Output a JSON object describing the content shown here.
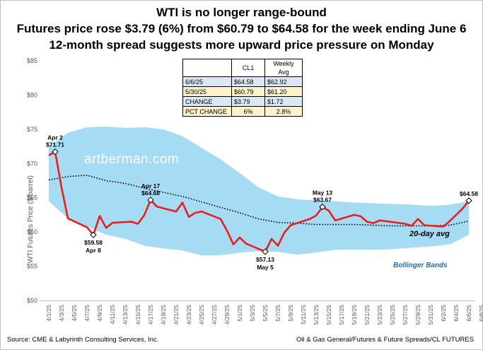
{
  "titles": {
    "line1": "WTI is no longer range-bound",
    "line2": "Futures price rose $3.79 (6%) from $60.79 to $64.58 for the week ending June 6",
    "line3": "12-month spread suggests more upward price pressure on Monday"
  },
  "footer": {
    "source": "Source: CME & Labyrinth Consulting Services, Inc.",
    "path": "Oil & Gas General/Futures & Future Spreads/CL FUTURES"
  },
  "table": {
    "headers": [
      "",
      "CL1",
      "Weekly Avg"
    ],
    "rows": [
      {
        "label": "6/6/25",
        "cl1": "$64.58",
        "avg": "$62.92"
      },
      {
        "label": "5/30/25",
        "cl1": "$60.79",
        "avg": "$61.20"
      },
      {
        "label": "CHANGE",
        "cl1": "$3.79",
        "avg": "$1.72"
      },
      {
        "label": "PCT CHANGE",
        "cl1": "6%",
        "avg": "2.8%"
      }
    ]
  },
  "chart_data": {
    "type": "line",
    "ylabel": "WTI  Futures Price ($/barrel)",
    "ylim": [
      50,
      85
    ],
    "yticks": [
      "$50",
      "$55",
      "$60",
      "$65",
      "$70",
      "$75",
      "$80",
      "$85"
    ],
    "xlim": [
      -1,
      67
    ],
    "xticks": [
      "4/1/25",
      "4/3/25",
      "4/5/25",
      "4/7/25",
      "4/9/25",
      "4/11/25",
      "4/13/25",
      "4/15/25",
      "4/17/25",
      "4/19/25",
      "4/21/25",
      "4/23/25",
      "4/25/25",
      "4/27/25",
      "4/29/25",
      "5/1/25",
      "5/3/25",
      "5/5/25",
      "5/7/25",
      "5/9/25",
      "5/11/25",
      "5/13/25",
      "5/15/25",
      "5/17/25",
      "5/19/25",
      "5/21/25",
      "5/23/25",
      "5/25/25",
      "5/27/25",
      "5/29/25",
      "5/31/25",
      "6/2/25",
      "6/4/25",
      "6/6/25",
      "6/8/25"
    ],
    "watermark": "artberman.com",
    "series": [
      {
        "name": "CL1",
        "x": [
          0,
          1,
          2,
          3,
          6,
          7,
          8,
          9,
          10,
          13,
          14,
          15,
          16,
          17,
          20,
          21,
          22,
          23,
          24,
          27,
          28,
          29,
          30,
          31,
          34,
          35,
          36,
          37,
          38,
          41,
          42,
          43,
          44,
          45,
          48,
          49,
          50,
          51,
          52,
          56,
          57,
          58,
          59,
          62,
          63,
          64,
          65,
          66
        ],
        "y": [
          71.2,
          71.71,
          66.5,
          61.99,
          60.7,
          59.58,
          62.35,
          60.6,
          61.35,
          61.5,
          61.2,
          62.47,
          64.68,
          63.7,
          63.0,
          64.3,
          62.2,
          62.8,
          63.0,
          61.9,
          60.2,
          58.2,
          59.2,
          58.3,
          57.13,
          59.0,
          58.0,
          59.9,
          61.0,
          61.9,
          62.4,
          63.67,
          63.1,
          61.7,
          62.5,
          62.3,
          61.5,
          61.3,
          61.7,
          61.2,
          60.9,
          61.9,
          61.0,
          60.79,
          61.6,
          62.5,
          63.4,
          64.58
        ]
      },
      {
        "name": "20-day avg",
        "x": [
          0,
          3,
          6,
          9,
          12,
          15,
          18,
          21,
          24,
          27,
          30,
          33,
          36,
          39,
          42,
          45,
          48,
          51,
          54,
          57,
          60,
          63,
          66
        ],
        "y": [
          67.6,
          68.1,
          68.3,
          67.5,
          67.1,
          66.4,
          65.8,
          65.2,
          64.4,
          63.6,
          62.8,
          61.9,
          61.4,
          61.3,
          61.1,
          61.1,
          61.1,
          61.0,
          60.9,
          60.9,
          60.9,
          61.0,
          61.6
        ]
      }
    ],
    "bollinger_bands": {
      "name": "Bollinger Bands",
      "x": [
        0,
        3,
        6,
        9,
        12,
        15,
        18,
        21,
        24,
        27,
        30,
        33,
        36,
        39,
        42,
        45,
        48,
        51,
        54,
        57,
        60,
        63,
        66
      ],
      "upper": [
        72.5,
        74.5,
        75.3,
        75.4,
        75.2,
        75.3,
        75.0,
        74.0,
        72.3,
        70.6,
        68.6,
        66.5,
        65.2,
        64.8,
        64.6,
        64.5,
        64.3,
        64.2,
        64.1,
        64.0,
        63.8,
        64.0,
        64.5
      ],
      "lower": [
        64.5,
        62.0,
        60.8,
        59.6,
        59.0,
        58.0,
        57.6,
        57.3,
        56.6,
        56.6,
        57.0,
        57.2,
        57.1,
        56.7,
        57.0,
        57.4,
        57.4,
        57.4,
        57.5,
        57.7,
        57.9,
        58.2,
        59.6
      ]
    },
    "annotations": [
      {
        "x": 1,
        "y": 71.71,
        "date": "Apr 2",
        "value": "$71.71",
        "pos": "above"
      },
      {
        "x": 7,
        "y": 59.58,
        "date": "Apr 8",
        "value": "$59.58",
        "pos": "below"
      },
      {
        "x": 16,
        "y": 64.68,
        "date": "Apr 17",
        "value": "$64.68",
        "pos": "above"
      },
      {
        "x": 34,
        "y": 57.13,
        "date": "May 5",
        "value": "$57.13",
        "pos": "below"
      },
      {
        "x": 43,
        "y": 63.67,
        "date": "May 13",
        "value": "$63.67",
        "pos": "above"
      },
      {
        "x": 66,
        "y": 64.58,
        "date": "",
        "value": "$64.58",
        "pos": "above"
      }
    ],
    "series_labels": {
      "avg": "20-day avg",
      "bands": "Bollinger Bands"
    }
  }
}
